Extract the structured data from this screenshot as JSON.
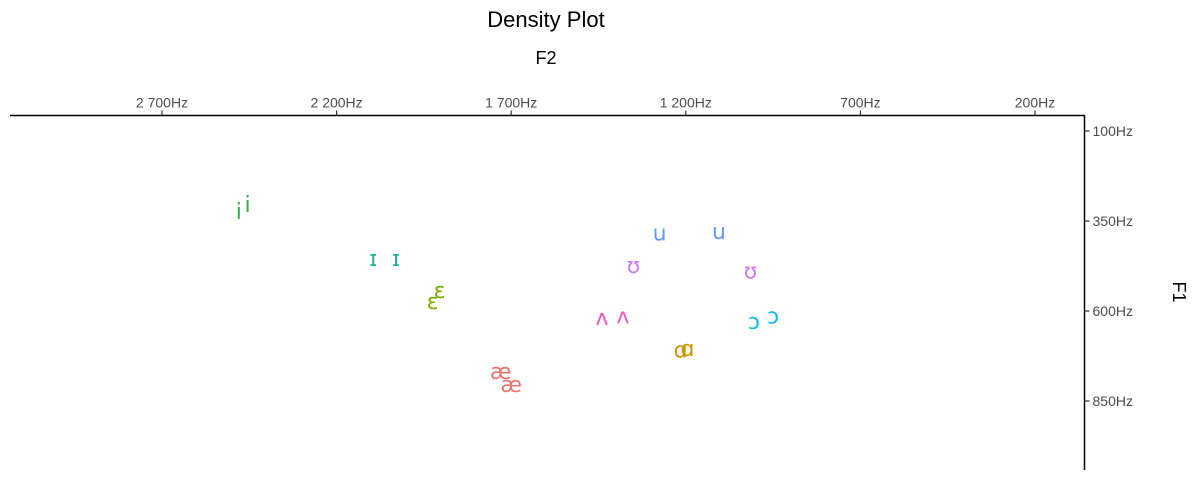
{
  "chart_data": {
    "type": "scatter",
    "title": "Density Plot",
    "xlabel": "F2",
    "ylabel": "F1",
    "x_axis": {
      "position": "top",
      "reversed": true,
      "ticks": [
        2700,
        2200,
        1700,
        1200,
        700,
        200
      ],
      "tick_labels": [
        "2 700Hz",
        "2 200Hz",
        "1 700Hz",
        "1 200Hz",
        "700Hz",
        "200Hz"
      ]
    },
    "y_axis": {
      "position": "right",
      "reversed": true,
      "ticks": [
        100,
        350,
        600,
        850
      ],
      "tick_labels": [
        "100Hz",
        "350Hz",
        "600Hz",
        "850Hz"
      ]
    },
    "series": [
      {
        "name": "i",
        "color": "#2cb33e",
        "points": [
          {
            "label": "i",
            "x": 2480,
            "y": 325
          },
          {
            "label": "i",
            "x": 2455,
            "y": 305
          }
        ]
      },
      {
        "name": "ɪ",
        "color": "#1cb394",
        "points": [
          {
            "label": "ɪ",
            "x": 2095,
            "y": 455
          },
          {
            "label": "ɪ",
            "x": 2030,
            "y": 455
          }
        ]
      },
      {
        "name": "ɛ",
        "color": "#7caa00",
        "points": [
          {
            "label": "ɛ",
            "x": 1925,
            "y": 575
          },
          {
            "label": "ɛ",
            "x": 1905,
            "y": 545
          }
        ]
      },
      {
        "name": "æ",
        "color": "#f0736b",
        "points": [
          {
            "label": "æ",
            "x": 1730,
            "y": 770
          },
          {
            "label": "æ",
            "x": 1700,
            "y": 805
          }
        ]
      },
      {
        "name": "ʌ",
        "color": "#ee5ac2",
        "points": [
          {
            "label": "ʌ",
            "x": 1440,
            "y": 620
          },
          {
            "label": "ʌ",
            "x": 1380,
            "y": 615
          }
        ]
      },
      {
        "name": "ɑ",
        "color": "#cd9600",
        "points": [
          {
            "label": "ɑ",
            "x": 1215,
            "y": 710
          },
          {
            "label": "ɑ",
            "x": 1195,
            "y": 705
          }
        ]
      },
      {
        "name": "ʊ",
        "color": "#c87ffe",
        "points": [
          {
            "label": "ʊ",
            "x": 1350,
            "y": 475
          },
          {
            "label": "ʊ",
            "x": 1015,
            "y": 490
          }
        ]
      },
      {
        "name": "u",
        "color": "#629bfe",
        "points": [
          {
            "label": "u",
            "x": 1275,
            "y": 385
          },
          {
            "label": "u",
            "x": 1105,
            "y": 380
          }
        ]
      },
      {
        "name": "ɔ",
        "color": "#19b7e6",
        "points": [
          {
            "label": "ɔ",
            "x": 1005,
            "y": 630
          },
          {
            "label": "ɔ",
            "x": 950,
            "y": 615
          }
        ]
      }
    ]
  }
}
